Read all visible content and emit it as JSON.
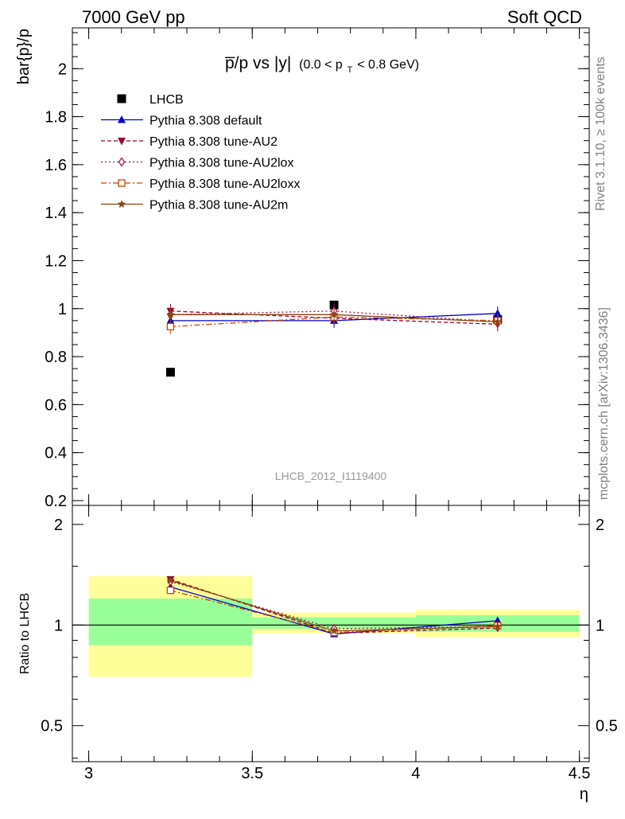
{
  "header": {
    "left": "7000 GeV pp",
    "right": "Soft QCD"
  },
  "side_text": {
    "rivet": "Rivet 3.1.10, ≥ 100k events",
    "mcplots": "mcplots.cern.ch [arXiv:1306.3436]"
  },
  "chart_data": [
    {
      "type": "scatter",
      "title_main": "p̅/p vs |y|",
      "title_cut_pre": "(0.0 < p",
      "title_cut_sub": "T",
      "title_cut_post": " < 0.8 GeV)",
      "ylabel": "bar{p}/p",
      "watermark": "LHCB_2012_I1119400",
      "xlim": [
        2.95,
        4.53
      ],
      "ylim": [
        0.18,
        2.17
      ],
      "yticks": [
        0.2,
        0.4,
        0.6,
        0.8,
        1,
        1.2,
        1.4,
        1.6,
        1.8,
        2
      ],
      "ytick_labels": [
        "0.2",
        "0.4",
        "0.6",
        "0.8",
        "1",
        "1.2",
        "1.4",
        "1.6",
        "1.8",
        "2"
      ],
      "grid": false,
      "legend_position": "top-left",
      "x": [
        3.25,
        3.75,
        4.25
      ],
      "series": [
        {
          "name": "LHCB",
          "values": [
            0.735,
            1.015,
            0.955
          ],
          "color": "#000000",
          "marker": "square",
          "dash": "none",
          "is_data": true
        },
        {
          "name": "Pythia 8.308 default",
          "values": [
            0.95,
            0.95,
            0.98
          ],
          "color": "#0000cc",
          "marker": "triangle-up",
          "dash": "solid"
        },
        {
          "name": "Pythia 8.308 tune-AU2",
          "values": [
            0.99,
            0.96,
            0.935
          ],
          "color": "#990033",
          "marker": "triangle-down",
          "dash": "dashed"
        },
        {
          "name": "Pythia 8.308 tune-AU2lox",
          "values": [
            0.975,
            0.99,
            0.945
          ],
          "color": "#aa1155",
          "marker": "diamond-open",
          "dash": "dotted"
        },
        {
          "name": "Pythia 8.308 tune-AU2loxx",
          "values": [
            0.925,
            0.965,
            0.95
          ],
          "color": "#cc4400",
          "marker": "square-open",
          "dash": "dashdot"
        },
        {
          "name": "Pythia 8.308 tune-AU2m",
          "values": [
            0.975,
            0.975,
            0.945
          ],
          "color": "#8b4513",
          "marker": "star",
          "dash": "solid"
        }
      ]
    },
    {
      "type": "line",
      "ylabel": "Ratio to LHCB",
      "xlabel": "η",
      "xlim": [
        2.95,
        4.53
      ],
      "ylim": [
        0.39,
        2.28
      ],
      "log_y": true,
      "yticks": [
        0.5,
        1,
        2
      ],
      "ytick_labels": [
        "0.5",
        "1",
        "2"
      ],
      "xticks": [
        3,
        3.5,
        4,
        4.5
      ],
      "xtick_labels": [
        "3",
        "3.5",
        "4",
        "4.5"
      ],
      "bands": [
        {
          "x": [
            3.0,
            3.5
          ],
          "yellow": [
            0.7,
            1.4
          ],
          "green": [
            0.87,
            1.2
          ]
        },
        {
          "x": [
            3.5,
            4.0
          ],
          "yellow": [
            0.945,
            1.09
          ],
          "green": [
            0.975,
            1.055
          ]
        },
        {
          "x": [
            4.0,
            4.5
          ],
          "yellow": [
            0.92,
            1.11
          ],
          "green": [
            0.955,
            1.07
          ]
        }
      ],
      "band_colors": {
        "yellow": "#ffff99",
        "green": "#99ff99"
      },
      "x": [
        3.25,
        3.75,
        4.25
      ],
      "series": [
        {
          "name": "Pythia 8.308 default",
          "values": [
            1.3,
            0.94,
            1.03
          ]
        },
        {
          "name": "Pythia 8.308 tune-AU2",
          "values": [
            1.37,
            0.945,
            0.98
          ]
        },
        {
          "name": "Pythia 8.308 tune-AU2lox",
          "values": [
            1.35,
            0.975,
            0.99
          ]
        },
        {
          "name": "Pythia 8.308 tune-AU2loxx",
          "values": [
            1.27,
            0.95,
            0.995
          ]
        },
        {
          "name": "Pythia 8.308 tune-AU2m",
          "values": [
            1.36,
            0.96,
            0.99
          ]
        }
      ]
    }
  ]
}
